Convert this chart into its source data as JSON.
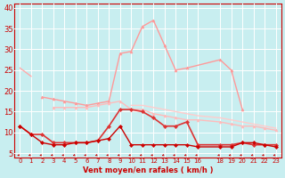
{
  "xlabel": "Vent moyen/en rafales ( km/h )",
  "background_color": "#c8eef0",
  "grid_color": "#ffffff",
  "x_ticks": [
    0,
    1,
    2,
    3,
    4,
    5,
    6,
    7,
    8,
    9,
    10,
    11,
    12,
    13,
    14,
    15,
    16,
    18,
    19,
    20,
    21,
    22,
    23
  ],
  "x_labels": [
    "0",
    "1",
    "2",
    "3",
    "4",
    "5",
    "6",
    "7",
    "8",
    "9",
    "10",
    "11",
    "12",
    "13",
    "14",
    "15",
    "16",
    "18",
    "19",
    "20",
    "21",
    "22",
    "23"
  ],
  "ylim": [
    4,
    41
  ],
  "yticks": [
    5,
    10,
    15,
    20,
    25,
    30,
    35,
    40
  ],
  "series": [
    {
      "color": "#ffaaaa",
      "linewidth": 1.0,
      "marker": null,
      "markersize": 2,
      "x": [
        0,
        1
      ],
      "y": [
        25.5,
        23.5
      ]
    },
    {
      "color": "#ff9999",
      "linewidth": 1.0,
      "marker": "^",
      "markersize": 2,
      "x": [
        2,
        3,
        4,
        5,
        6,
        7,
        8,
        9,
        10,
        11,
        12,
        13,
        14,
        15,
        18,
        19,
        20
      ],
      "y": [
        18.5,
        18.0,
        17.5,
        17.0,
        16.5,
        17.0,
        17.5,
        29.0,
        29.5,
        35.5,
        37.0,
        31.0,
        25.0,
        25.5,
        27.5,
        25.0,
        15.5
      ]
    },
    {
      "color": "#ffbbbb",
      "linewidth": 1.0,
      "marker": "^",
      "markersize": 2,
      "x": [
        3,
        4,
        5,
        6,
        7,
        8,
        9,
        10,
        11,
        12,
        13,
        14,
        15,
        16,
        18,
        19,
        20,
        21,
        22,
        23
      ],
      "y": [
        16.0,
        16.0,
        16.0,
        16.0,
        16.5,
        17.0,
        17.5,
        15.5,
        15.5,
        14.5,
        14.0,
        13.5,
        13.0,
        13.0,
        12.5,
        12.0,
        11.5,
        11.5,
        11.0,
        10.5
      ]
    },
    {
      "color": "#ffcccc",
      "linewidth": 1.0,
      "marker": null,
      "markersize": 0,
      "x": [
        10,
        11,
        12,
        13,
        14,
        15,
        16,
        18,
        19,
        20,
        21,
        22,
        23
      ],
      "y": [
        16.5,
        16.5,
        16.0,
        15.5,
        15.0,
        14.5,
        14.0,
        13.5,
        13.0,
        12.5,
        12.0,
        11.5,
        11.0
      ]
    },
    {
      "color": "#dd3333",
      "linewidth": 1.2,
      "marker": "D",
      "markersize": 2,
      "x": [
        0,
        1,
        2,
        3,
        4,
        5,
        6,
        7,
        8,
        9,
        10,
        11,
        12,
        13,
        14,
        15,
        16,
        18,
        19,
        20,
        21,
        22,
        23
      ],
      "y": [
        11.5,
        9.5,
        9.5,
        7.5,
        7.5,
        7.5,
        7.5,
        8.0,
        11.5,
        15.5,
        15.5,
        15.0,
        13.5,
        11.5,
        11.5,
        12.5,
        7.0,
        7.0,
        7.0,
        7.5,
        7.0,
        7.0,
        7.0
      ]
    },
    {
      "color": "#cc0000",
      "linewidth": 1.0,
      "marker": "D",
      "markersize": 2,
      "x": [
        0,
        1,
        2,
        3,
        4,
        5,
        6,
        7,
        8,
        9,
        10,
        11,
        12,
        13,
        14,
        15,
        16,
        18,
        19,
        20,
        21,
        22,
        23
      ],
      "y": [
        11.5,
        9.5,
        7.5,
        7.0,
        7.0,
        7.5,
        7.5,
        8.0,
        8.5,
        11.5,
        7.0,
        7.0,
        7.0,
        7.0,
        7.0,
        7.0,
        6.5,
        6.5,
        6.5,
        7.5,
        7.5,
        7.0,
        6.5
      ]
    }
  ]
}
